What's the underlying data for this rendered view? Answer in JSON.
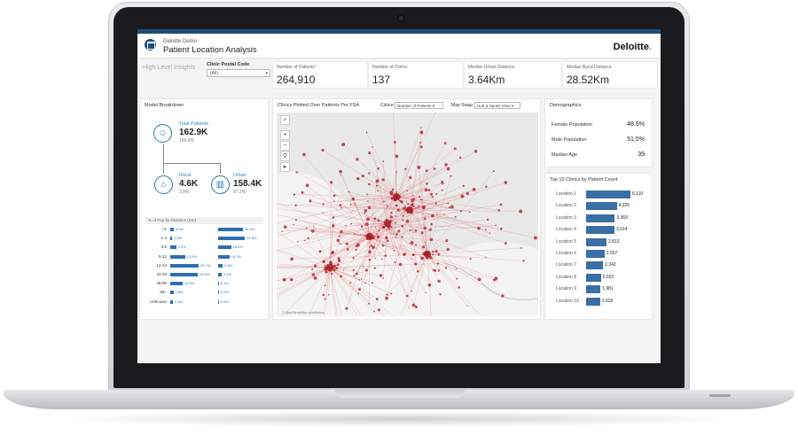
{
  "header": {
    "subtitle": "Deloitte Demo",
    "title": "Patient Location Analysis",
    "logo_text": "Deloitte",
    "logo_dot": "."
  },
  "insights": {
    "label": "High Level Insights",
    "postal_label": "Clinic Postal Code",
    "postal_value": "(All)"
  },
  "kpis": [
    {
      "label": "Number of Patients*",
      "value": "264,910"
    },
    {
      "label": "Number of Clinics",
      "value": "137"
    },
    {
      "label": "Median Urban Distance",
      "value": "3.64Km"
    },
    {
      "label": "Median Rural Distance",
      "value": "28.52Km"
    }
  ],
  "breakdown": {
    "title": "Model Breakdown",
    "total": {
      "label": "Total Patients",
      "value": "162.9K",
      "pct": "100.0%"
    },
    "rural": {
      "label": "Rural",
      "value": "4.6K",
      "pct": "2.8%"
    },
    "urban": {
      "label": "Urban",
      "value": "158.4K",
      "pct": "97.2%"
    },
    "dist_header": "% of Pop by Distance (Km)",
    "categories": [
      "<1",
      "1-3",
      "3-6",
      "6-12",
      "12-24",
      "24-48",
      "48-96",
      "96+",
      "Unknown"
    ],
    "rural_pct": [
      3.0,
      1.8,
      5.2,
      13.2,
      25.7,
      24.9,
      11.2,
      2.8,
      2.4
    ],
    "rural_labels": [
      "3.0%",
      "1.8%",
      "5.2%",
      "13.2%",
      "25.7%",
      "24.9%",
      "11.2%",
      "2.8%",
      "2.4%"
    ],
    "urban_pct": [
      31.2,
      33.5,
      16.4,
      14.2,
      5.8,
      4.1,
      0.1,
      0.0,
      0.0
    ],
    "urban_labels": [
      "31.2%",
      "33.5%",
      "16.4%",
      "14.2%",
      "5.8%",
      "4.1%",
      "0.1%",
      "0.0%",
      "0.0%"
    ]
  },
  "map": {
    "title": "Clinics Plotted Over Patients Per FSA",
    "colour_label": "Colour:",
    "colour_value": "Number of Patients",
    "swap_label": "Map Swap:",
    "swap_value": "Hub & Spoke View",
    "attribution": "© OpenStreetMap contributors",
    "controls": [
      "search-icon",
      "zoom-in-icon",
      "zoom-out-icon",
      "lock-icon",
      "play-icon"
    ]
  },
  "demographics": {
    "title": "Demographics",
    "rows": [
      {
        "label": "Female Population",
        "value": "48.5%"
      },
      {
        "label": "Male Population",
        "value": "51.5%"
      },
      {
        "label": "Median Age",
        "value": "39"
      }
    ]
  },
  "top10": {
    "title": "Top 10 Clinics by Patient Count",
    "labels": [
      "Location 1",
      "Location 2",
      "Location 3",
      "Location 4",
      "Location 5",
      "Location 6",
      "Location 7",
      "Location 8",
      "Location 9",
      "Location 10"
    ],
    "values": [
      6110,
      4225,
      3969,
      3914,
      2813,
      2557,
      2342,
      2023,
      1981,
      1918
    ],
    "value_labels": [
      "6,110",
      "4,225",
      "3,969",
      "3,914",
      "2,813",
      "2,557",
      "2,342",
      "2,023",
      "1,981",
      "1,918"
    ]
  },
  "colors": {
    "accent": "#1f4e79",
    "bar": "#2e6fb0",
    "map_line": "#d9363e",
    "brand_dot": "#86bc25"
  }
}
